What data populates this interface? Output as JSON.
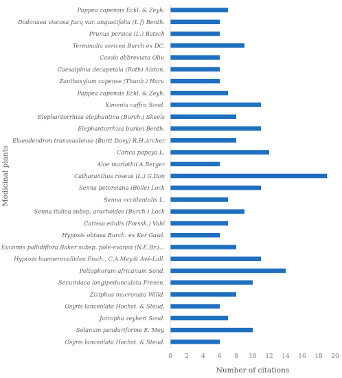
{
  "chart_data": {
    "type": "bar",
    "orientation": "horizontal",
    "xlabel": "Number of citations",
    "ylabel": "Medicinal plants",
    "xlim": [
      0,
      20
    ],
    "xticks": [
      "0",
      "2",
      "4",
      "6",
      "8",
      "10",
      "12",
      "14",
      "16",
      "18",
      "20"
    ],
    "grid": false,
    "legend": "none",
    "bar_color": "#1f6fc0",
    "categories": [
      "Pappea capensis Eckl. & Zeyh.",
      "Dodonaea viscosa Jacq var. angustifolia (L.f) Benth.",
      "Prunus persica (L.) Batsch",
      "Terminalia sericea Burch ex DC.",
      "Cassia abbreviata Oliv.",
      "Caesalpinia decapetala (Roth) Alston.",
      "Zanthoxylum capense (Thunb.) Harv.",
      "Pappea capensis Eckl. & Zeyh.",
      "Ximenia caffra Sond.",
      "Elephantorrhiza elephantina (Burch.) Skeels",
      "Elephantorrhiza burkei Benth.",
      "Elaeodendron transvaalense (Burtt Davy) R.H.Archer",
      "Carica papaya L.",
      "Aloe marlothii A.Berger",
      "Catharanthus roseus (L.) G.Don",
      "Senna petersiana (Bolle) Lock",
      "Senna occidentalis L.",
      "Senna italica subsp. arachoides (Burch.) Lock",
      "Carissa edulis (Forssk.) Vahl",
      "Hypoxis obtusa Burch. ex Ker Gawl.",
      "Eucomis pallidiflora Baker subsp. pole-evansii (N.E.Br.)…",
      "Hypoxis haemerocallidea Fisch., C.A.Mey.& Avé-Lall.",
      "Peltophorum africanum Sond.",
      "Securidaca longipedunculata Fresen.",
      "Ziziphus mucronata Willd.",
      "Osyris lanceolata Hochst. & Steud.",
      "Jatropha zeyheri Sond.",
      "Solanum panduriforme E. Mey.",
      "Osyris lanceolata Hochst. & Steud."
    ],
    "values": [
      7,
      6,
      6,
      9,
      6,
      6,
      6,
      7,
      11,
      8,
      11,
      8,
      12,
      6,
      19,
      11,
      7,
      9,
      7,
      6,
      8,
      11,
      14,
      10,
      8,
      6,
      7,
      10,
      6
    ]
  }
}
